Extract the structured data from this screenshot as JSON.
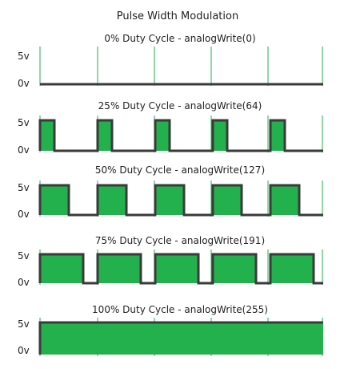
{
  "title": "Pulse Width Modulation",
  "colors": {
    "fill": "#22b14c",
    "wave": "#3a3a3a",
    "guide": "#22b14c",
    "text": "#222222"
  },
  "panels": [
    {
      "label": "0% Duty Cycle - analogWrite(0)",
      "duty": 0.0,
      "high_label": "5v",
      "low_label": "0v"
    },
    {
      "label": "25% Duty Cycle - analogWrite(64)",
      "duty": 0.25,
      "high_label": "5v",
      "low_label": "0v"
    },
    {
      "label": "50% Duty Cycle - analogWrite(127)",
      "duty": 0.5,
      "high_label": "5v",
      "low_label": "0v"
    },
    {
      "label": "75% Duty Cycle - analogWrite(191)",
      "duty": 0.75,
      "high_label": "5v",
      "low_label": "0v"
    },
    {
      "label": "100% Duty Cycle - analogWrite(255)",
      "duty": 1.0,
      "high_label": "5v",
      "low_label": "0v"
    }
  ],
  "periods": 5
}
